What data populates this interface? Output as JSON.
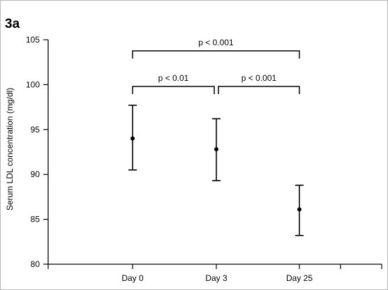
{
  "chart_data": {
    "type": "scatter",
    "panel_label": "3a",
    "title": "",
    "xlabel": "",
    "ylabel": "Serum LDL concentration (mg/dl)",
    "ylim": [
      80,
      105
    ],
    "yticks": [
      80,
      85,
      90,
      95,
      100,
      105
    ],
    "categories": [
      "Day 0",
      "Day 3",
      "Day 25"
    ],
    "series": [
      {
        "values": [
          94.0,
          92.8,
          86.1
        ],
        "error_low": [
          90.5,
          89.3,
          83.2
        ],
        "error_high": [
          97.7,
          96.2,
          88.8
        ]
      }
    ],
    "significance": [
      {
        "from": "Day 0",
        "to": "Day 3",
        "label": "p < 0.01"
      },
      {
        "from": "Day 3",
        "to": "Day 25",
        "label": "p < 0.001"
      },
      {
        "from": "Day 0",
        "to": "Day 25",
        "label": "p < 0.001"
      }
    ],
    "grid": false,
    "legend": "none"
  }
}
